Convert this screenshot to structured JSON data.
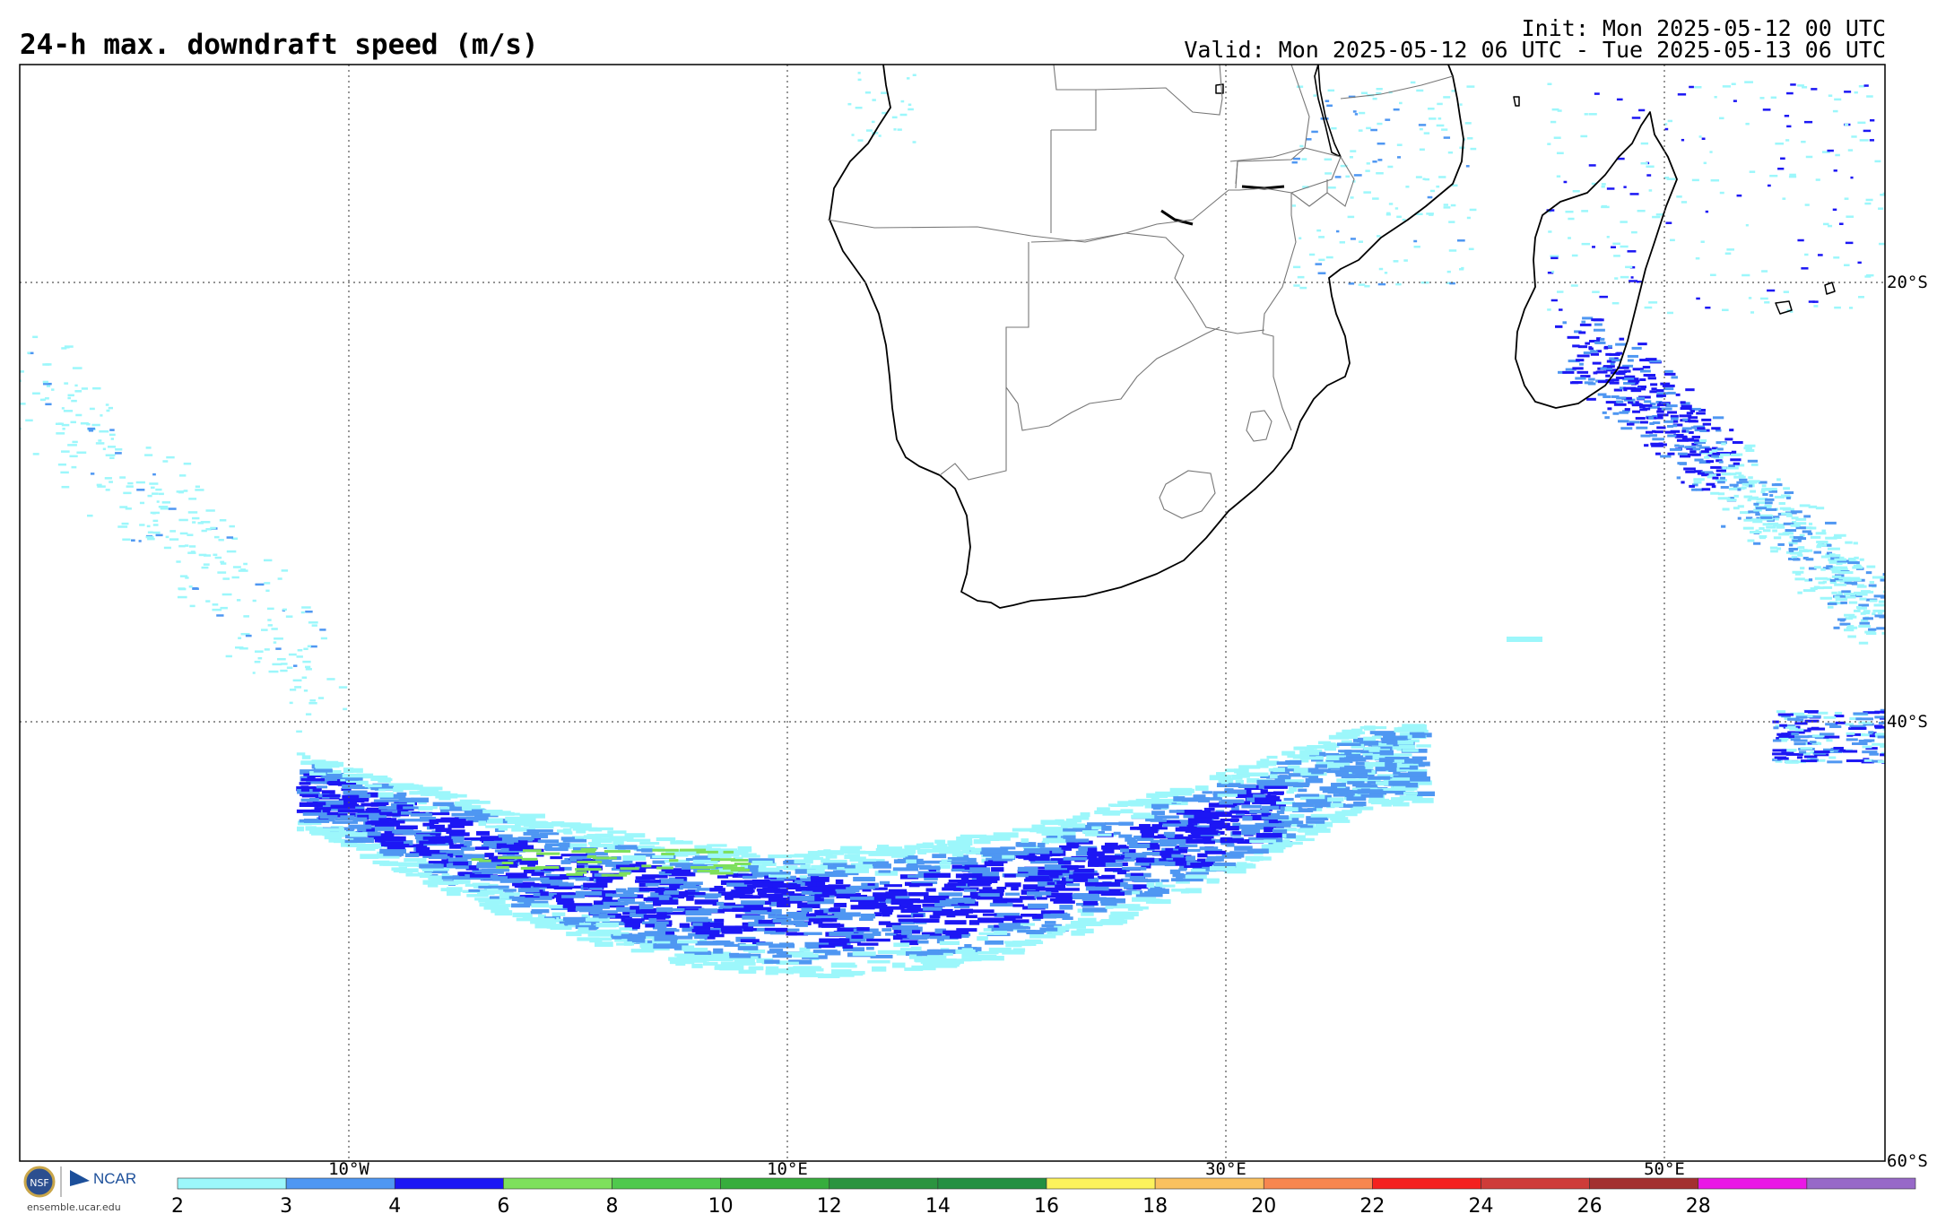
{
  "header": {
    "title": "24-h max. downdraft speed (m/s)",
    "init": "Init: Mon 2025-05-12 00 UTC",
    "valid": "Valid: Mon 2025-05-12 06 UTC - Tue 2025-05-13 06 UTC"
  },
  "map": {
    "region": "Southern Africa / South Atlantic / SW Indian Ocean",
    "lon_range": [
      -25,
      60
    ],
    "lat_range": [
      -60,
      -10
    ],
    "lon_labels": [
      "10°W",
      "10°E",
      "30°E",
      "50°E"
    ],
    "lat_labels": [
      "20°S",
      "40°S",
      "60°S"
    ]
  },
  "colorbar": {
    "ticks": [
      "2",
      "3",
      "4",
      "6",
      "8",
      "10",
      "12",
      "14",
      "16",
      "18",
      "20",
      "22",
      "24",
      "26",
      "28"
    ],
    "colors": [
      "#9cf7fb",
      "#4f97f2",
      "#1c17f4",
      "#7ee05c",
      "#4fc94d",
      "#37ad3d",
      "#2b9440",
      "#249042",
      "#fcf25c",
      "#fac15f",
      "#f7864f",
      "#f4211f",
      "#ce3c39",
      "#a3302f",
      "#ea18e6",
      "#9769c8"
    ]
  },
  "logo": {
    "nsf": "NSF",
    "ncar": "NCAR",
    "url": "ensemble.ucar.edu"
  }
}
